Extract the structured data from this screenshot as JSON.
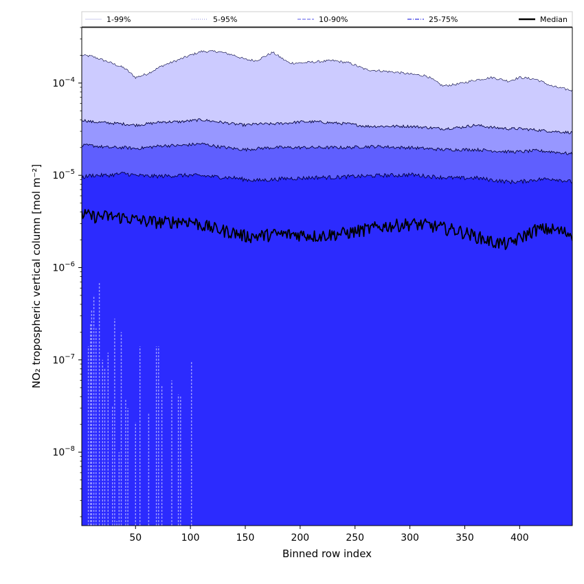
{
  "chart_data": {
    "type": "area",
    "xlabel": "Binned row index",
    "ylabel": "NO₂ tropospheric vertical column [mol m⁻²]",
    "y_scale": "log",
    "xlim": [
      1,
      448
    ],
    "ylim": [
      1.6e-09,
      0.0004
    ],
    "x_ticks": [
      {
        "value": 50,
        "label": "50"
      },
      {
        "value": 100,
        "label": "100"
      },
      {
        "value": 150,
        "label": "150"
      },
      {
        "value": 200,
        "label": "200"
      },
      {
        "value": 250,
        "label": "250"
      },
      {
        "value": 300,
        "label": "300"
      },
      {
        "value": 350,
        "label": "350"
      },
      {
        "value": 400,
        "label": "400"
      }
    ],
    "y_ticks": [
      {
        "value": 1e-08,
        "base": "10",
        "exp": "−8"
      },
      {
        "value": 1e-07,
        "base": "10",
        "exp": "−7"
      },
      {
        "value": 1e-06,
        "base": "10",
        "exp": "−6"
      },
      {
        "value": 1e-05,
        "base": "10",
        "exp": "−5"
      },
      {
        "value": 0.0001,
        "base": "10",
        "exp": "−4"
      }
    ],
    "legend_position": "top, outside plot, horizontal",
    "legend": [
      {
        "label": "1-99%",
        "color": "#dcdcf4",
        "style": "solid"
      },
      {
        "label": "5-95%",
        "color": "#b4b4e8",
        "style": "dotted"
      },
      {
        "label": "10-90%",
        "color": "#8c8cf0",
        "style": "dashed"
      },
      {
        "label": "25-75%",
        "color": "#5555e6",
        "style": "dashdot"
      },
      {
        "label": "Median",
        "color": "#000000",
        "style": "solid-thick"
      }
    ],
    "colors": {
      "band_1_99": "#cccbff",
      "band_5_95": "#9797ff",
      "band_10_90": "#5f5ffe",
      "band_25_75": "#2c2bfe",
      "median_line": "#000000"
    },
    "x": [
      1,
      10,
      25,
      40,
      50,
      60,
      75,
      90,
      100,
      110,
      125,
      140,
      150,
      160,
      175,
      190,
      200,
      215,
      230,
      245,
      260,
      275,
      290,
      300,
      315,
      330,
      345,
      360,
      375,
      390,
      400,
      415,
      430,
      448
    ],
    "series": [
      {
        "name": "1-99%",
        "role": "upper",
        "values": [
          0.0002,
          0.000195,
          0.00017,
          0.000145,
          0.000115,
          0.000125,
          0.000155,
          0.00018,
          0.0002,
          0.00022,
          0.00022,
          0.0002,
          0.00018,
          0.000175,
          0.000215,
          0.000165,
          0.000165,
          0.00017,
          0.000175,
          0.000165,
          0.00014,
          0.000135,
          0.00013,
          0.000125,
          0.00012,
          9.3e-05,
          9.8e-05,
          0.000108,
          0.000115,
          0.000105,
          0.000115,
          0.00011,
          9.2e-05,
          8.3e-05
        ]
      },
      {
        "name": "5-95%",
        "role": "upper",
        "values": [
          4e-05,
          3.8e-05,
          3.7e-05,
          3.6e-05,
          3.5e-05,
          3.6e-05,
          3.8e-05,
          3.8e-05,
          3.9e-05,
          4e-05,
          3.8e-05,
          3.6e-05,
          3.5e-05,
          3.6e-05,
          3.6e-05,
          3.7e-05,
          3.8e-05,
          3.8e-05,
          3.7e-05,
          3.6e-05,
          3.4e-05,
          3.4e-05,
          3.4e-05,
          3.4e-05,
          3.3e-05,
          3.2e-05,
          3.3e-05,
          3.5e-05,
          3.3e-05,
          3.2e-05,
          3.2e-05,
          3.1e-05,
          3e-05,
          2.9e-05
        ]
      },
      {
        "name": "10-90%",
        "role": "upper",
        "values": [
          2.1e-05,
          2.1e-05,
          2e-05,
          2e-05,
          1.95e-05,
          2e-05,
          2.1e-05,
          2.1e-05,
          2.15e-05,
          2.2e-05,
          2.05e-05,
          1.95e-05,
          1.9e-05,
          1.95e-05,
          2e-05,
          2e-05,
          2e-05,
          2e-05,
          2e-05,
          2e-05,
          2.05e-05,
          2.05e-05,
          2e-05,
          2e-05,
          1.95e-05,
          1.9e-05,
          1.9e-05,
          1.9e-05,
          1.85e-05,
          1.8e-05,
          1.8e-05,
          1.85e-05,
          1.8e-05,
          1.7e-05
        ]
      },
      {
        "name": "25-75%",
        "role": "upper",
        "values": [
          9.5e-06,
          1e-05,
          1e-05,
          1.05e-05,
          1e-05,
          9.8e-06,
          9.8e-06,
          1e-05,
          1e-05,
          9.9e-06,
          9.6e-06,
          9.4e-06,
          9e-06,
          8.8e-06,
          9e-06,
          9.3e-06,
          9.3e-06,
          9.5e-06,
          9.5e-06,
          9.7e-06,
          9.8e-06,
          1e-05,
          1e-05,
          1.02e-05,
          9.8e-06,
          9.5e-06,
          9.3e-06,
          9.4e-06,
          8.9e-06,
          8.5e-06,
          8.5e-06,
          9e-06,
          9.2e-06,
          8.5e-06
        ]
      },
      {
        "name": "Median",
        "values": [
          3.8e-06,
          3.6e-06,
          3.6e-06,
          3.5e-06,
          3.3e-06,
          3.2e-06,
          3.1e-06,
          3.2e-06,
          3.2e-06,
          2.9e-06,
          2.6e-06,
          2.4e-06,
          2.2e-06,
          2.2e-06,
          2.3e-06,
          2.3e-06,
          2.3e-06,
          2.2e-06,
          2.3e-06,
          2.4e-06,
          2.6e-06,
          2.8e-06,
          2.9e-06,
          3e-06,
          2.9e-06,
          2.7e-06,
          2.5e-06,
          2.2e-06,
          1.9e-06,
          1.8e-06,
          2.1e-06,
          2.6e-06,
          2.6e-06,
          2.3e-06
        ]
      }
    ],
    "lower_tail_spikes": {
      "description_of_values": "row index and peak value of the thin 1-99% lower-band spikes at the left",
      "x": [
        7,
        9,
        10,
        12,
        14,
        17,
        20,
        22,
        25,
        29,
        31,
        33,
        35,
        37,
        41,
        43,
        50,
        54,
        62,
        69,
        71,
        74,
        83,
        89,
        91,
        101
      ],
      "values": [
        1.4e-07,
        2.5e-07,
        3.5e-07,
        5e-07,
        2.2e-07,
        6.8e-07,
        1e-07,
        8e-08,
        1.2e-07,
        3.2e-08,
        2.8e-07,
        1.8e-09,
        1e-08,
        2e-07,
        3.8e-08,
        3e-08,
        2.1e-08,
        1.4e-07,
        2.6e-08,
        1.4e-07,
        1.4e-07,
        5.2e-08,
        6e-08,
        4.2e-08,
        4e-08,
        9.5e-08
      ]
    }
  }
}
